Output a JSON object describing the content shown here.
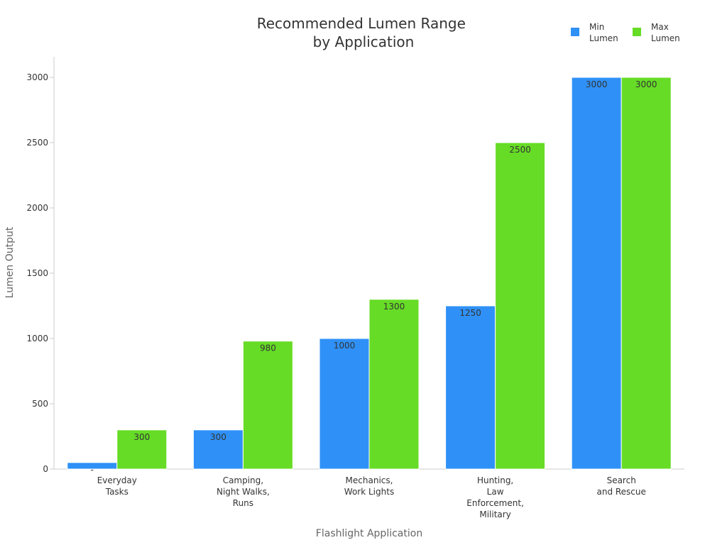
{
  "chart_data": {
    "type": "bar",
    "title": [
      "Recommended Lumen Range",
      "by Application"
    ],
    "xlabel": "Flashlight Application",
    "ylabel": "Lumen Output",
    "ylim": [
      0,
      3000
    ],
    "yticks": [
      0,
      500,
      1000,
      1500,
      2000,
      2500,
      3000
    ],
    "categories": [
      [
        "Everyday",
        "Tasks"
      ],
      [
        "Camping,",
        "Night Walks,",
        "Runs"
      ],
      [
        "Mechanics,",
        "Work Lights"
      ],
      [
        "Hunting,",
        "Law",
        "Enforcement,",
        "Military"
      ],
      [
        "Search",
        "and Rescue"
      ]
    ],
    "series": [
      {
        "name": [
          "Min",
          "Lumen"
        ],
        "color": "#2f91f7",
        "values": [
          50,
          300,
          1000,
          1250,
          3000
        ],
        "labels": [
          "-",
          "300",
          "1000",
          "1250",
          "3000"
        ]
      },
      {
        "name": [
          "Max",
          "Lumen"
        ],
        "color": "#66dc26",
        "values": [
          300,
          980,
          1300,
          2500,
          3000
        ],
        "labels": [
          "300",
          "980",
          "1300",
          "2500",
          "3000"
        ]
      }
    ],
    "legend": "top-right",
    "grid": false
  }
}
